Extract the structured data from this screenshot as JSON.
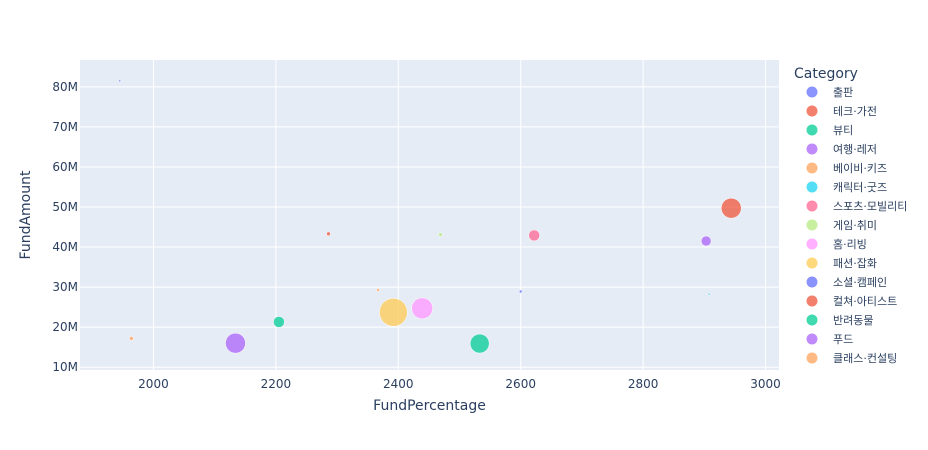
{
  "chart_data": {
    "type": "scatter",
    "xlabel": "FundPercentage",
    "ylabel": "FundAmount",
    "xlim": [
      1880,
      3022
    ],
    "ylim": [
      9300000,
      86700000
    ],
    "xticks": [
      2000,
      2200,
      2400,
      2600,
      2800,
      3000
    ],
    "yticks": [
      10000000,
      20000000,
      30000000,
      40000000,
      50000000,
      60000000,
      70000000,
      80000000
    ],
    "ytick_labels": [
      "10M",
      "20M",
      "30M",
      "40M",
      "50M",
      "60M",
      "70M",
      "80M"
    ],
    "grid": true,
    "legend_title": "Category",
    "legend_position": "right",
    "series": [
      {
        "name": "출판",
        "color": "#636efa",
        "points": [
          {
            "x": 1945,
            "y": 81500000,
            "size": 2
          }
        ]
      },
      {
        "name": "테크·가전",
        "color": "#EF553B",
        "points": [
          {
            "x": 2944,
            "y": 49700000,
            "size": 20
          }
        ]
      },
      {
        "name": "뷰티",
        "color": "#00cc96",
        "points": [
          {
            "x": 2533,
            "y": 15900000,
            "size": 19
          }
        ]
      },
      {
        "name": "여행·레저",
        "color": "#ab63fa",
        "points": [
          {
            "x": 2903,
            "y": 41500000,
            "size": 10
          }
        ]
      },
      {
        "name": "베이비·키즈",
        "color": "#FFA15A",
        "points": [
          {
            "x": 2367,
            "y": 29300000,
            "size": 3
          }
        ]
      },
      {
        "name": "캐릭터·굿즈",
        "color": "#19d3f3",
        "points": [
          {
            "x": 2908,
            "y": 28200000,
            "size": 2
          }
        ]
      },
      {
        "name": "스포츠·모빌리티",
        "color": "#FF6692",
        "points": [
          {
            "x": 2622,
            "y": 42900000,
            "size": 11
          }
        ]
      },
      {
        "name": "게임·취미",
        "color": "#B6E880",
        "points": [
          {
            "x": 2469,
            "y": 43100000,
            "size": 4
          }
        ]
      },
      {
        "name": "홈·리빙",
        "color": "#FF97FF",
        "points": [
          {
            "x": 2439,
            "y": 24700000,
            "size": 21
          }
        ]
      },
      {
        "name": "패션·잡화",
        "color": "#FECB52",
        "points": [
          {
            "x": 2392,
            "y": 23700000,
            "size": 28
          }
        ]
      },
      {
        "name": "소셜·캠페인",
        "color": "#636efa",
        "points": [
          {
            "x": 2600,
            "y": 28900000,
            "size": 3
          }
        ]
      },
      {
        "name": "컬쳐·아티스트",
        "color": "#EF553B",
        "points": [
          {
            "x": 2286,
            "y": 43300000,
            "size": 4
          }
        ]
      },
      {
        "name": "반려동물",
        "color": "#00cc96",
        "points": [
          {
            "x": 2205,
            "y": 21300000,
            "size": 11
          }
        ]
      },
      {
        "name": "푸드",
        "color": "#ab63fa",
        "points": [
          {
            "x": 2134,
            "y": 16000000,
            "size": 20
          }
        ]
      },
      {
        "name": "클래스·컨설팅",
        "color": "#FFA15A",
        "points": [
          {
            "x": 1964,
            "y": 17200000,
            "size": 4
          }
        ]
      }
    ]
  }
}
